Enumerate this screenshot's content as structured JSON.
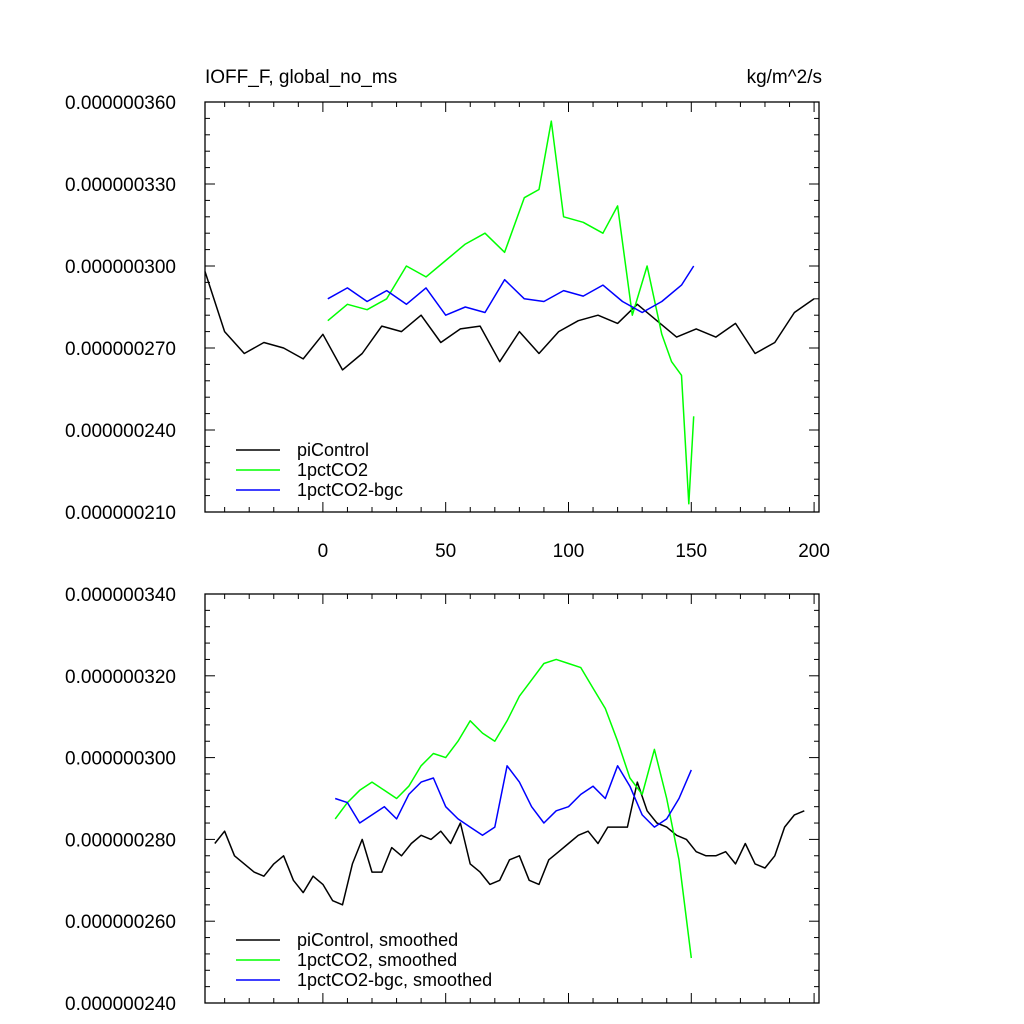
{
  "chart_data": [
    {
      "type": "line",
      "title_left": "IOFF_F, global_no_ms",
      "title_right": "kg/m^2/s",
      "xlabel": "",
      "ylabel": "",
      "xlim": [
        -48,
        202
      ],
      "ylim": [
        2.1e-07,
        3.6e-07
      ],
      "xticks": [
        0,
        50,
        100,
        150,
        200
      ],
      "xtick_labels": [
        "0",
        "50",
        "100",
        "150",
        "200"
      ],
      "yticks": [
        2.1e-07,
        2.4e-07,
        2.7e-07,
        3e-07,
        3.3e-07,
        3.6e-07
      ],
      "ytick_labels": [
        "0.000000210",
        "0.000000240",
        "0.000000270",
        "0.000000300",
        "0.000000330",
        "0.000000360"
      ],
      "legend_position": "bottom-left",
      "series": [
        {
          "name": "piControl",
          "color": "#000000",
          "x": [
            -48,
            -40,
            -32,
            -24,
            -16,
            -8,
            0,
            8,
            16,
            24,
            32,
            40,
            48,
            56,
            64,
            72,
            80,
            88,
            96,
            104,
            112,
            120,
            128,
            136,
            144,
            152,
            160,
            168,
            176,
            184,
            192,
            200
          ],
          "values": [
            2.98e-07,
            2.76e-07,
            2.68e-07,
            2.72e-07,
            2.7e-07,
            2.66e-07,
            2.75e-07,
            2.62e-07,
            2.68e-07,
            2.78e-07,
            2.76e-07,
            2.82e-07,
            2.72e-07,
            2.77e-07,
            2.78e-07,
            2.65e-07,
            2.76e-07,
            2.68e-07,
            2.76e-07,
            2.8e-07,
            2.82e-07,
            2.79e-07,
            2.86e-07,
            2.8e-07,
            2.74e-07,
            2.77e-07,
            2.74e-07,
            2.79e-07,
            2.68e-07,
            2.72e-07,
            2.83e-07,
            2.88e-07
          ]
        },
        {
          "name": "1pctCO2",
          "color": "#00ff00",
          "x": [
            2,
            10,
            18,
            26,
            34,
            42,
            50,
            58,
            66,
            74,
            82,
            88,
            93,
            98,
            106,
            114,
            120,
            126,
            132,
            138,
            142,
            146,
            149,
            151
          ],
          "values": [
            2.8e-07,
            2.86e-07,
            2.84e-07,
            2.88e-07,
            3e-07,
            2.96e-07,
            3.02e-07,
            3.08e-07,
            3.12e-07,
            3.05e-07,
            3.25e-07,
            3.28e-07,
            3.53e-07,
            3.18e-07,
            3.16e-07,
            3.12e-07,
            3.22e-07,
            2.82e-07,
            3e-07,
            2.75e-07,
            2.65e-07,
            2.6e-07,
            2.13e-07,
            2.45e-07
          ]
        },
        {
          "name": "1pctCO2-bgc",
          "color": "#0000ff",
          "x": [
            2,
            10,
            18,
            26,
            34,
            42,
            50,
            58,
            66,
            74,
            82,
            90,
            98,
            106,
            114,
            122,
            130,
            138,
            146,
            151
          ],
          "values": [
            2.88e-07,
            2.92e-07,
            2.87e-07,
            2.91e-07,
            2.86e-07,
            2.92e-07,
            2.82e-07,
            2.85e-07,
            2.83e-07,
            2.95e-07,
            2.88e-07,
            2.87e-07,
            2.91e-07,
            2.89e-07,
            2.93e-07,
            2.87e-07,
            2.83e-07,
            2.87e-07,
            2.93e-07,
            3e-07
          ]
        }
      ]
    },
    {
      "type": "line",
      "title": "",
      "xlabel": "",
      "ylabel": "",
      "xlim": [
        -48,
        202
      ],
      "ylim": [
        2.4e-07,
        3.4e-07
      ],
      "xticks": [
        0,
        50,
        100,
        150,
        200
      ],
      "yticks": [
        2.4e-07,
        2.6e-07,
        2.8e-07,
        3e-07,
        3.2e-07,
        3.4e-07
      ],
      "ytick_labels": [
        "0.000000240",
        "0.000000260",
        "0.000000280",
        "0.000000300",
        "0.000000320",
        "0.000000340"
      ],
      "legend_position": "bottom-left",
      "series": [
        {
          "name": "piControl, smoothed",
          "color": "#000000",
          "x": [
            -44,
            -40,
            -36,
            -32,
            -28,
            -24,
            -20,
            -16,
            -12,
            -8,
            -4,
            0,
            4,
            8,
            12,
            16,
            20,
            24,
            28,
            32,
            36,
            40,
            44,
            48,
            52,
            56,
            60,
            64,
            68,
            72,
            76,
            80,
            84,
            88,
            92,
            96,
            100,
            104,
            108,
            112,
            116,
            120,
            124,
            128,
            132,
            136,
            140,
            144,
            148,
            152,
            156,
            160,
            164,
            168,
            172,
            176,
            180,
            184,
            188,
            192,
            196
          ],
          "values": [
            2.79e-07,
            2.82e-07,
            2.76e-07,
            2.74e-07,
            2.72e-07,
            2.71e-07,
            2.74e-07,
            2.76e-07,
            2.7e-07,
            2.67e-07,
            2.71e-07,
            2.69e-07,
            2.65e-07,
            2.64e-07,
            2.74e-07,
            2.8e-07,
            2.72e-07,
            2.72e-07,
            2.78e-07,
            2.76e-07,
            2.79e-07,
            2.81e-07,
            2.8e-07,
            2.82e-07,
            2.79e-07,
            2.84e-07,
            2.74e-07,
            2.72e-07,
            2.69e-07,
            2.7e-07,
            2.75e-07,
            2.76e-07,
            2.7e-07,
            2.69e-07,
            2.75e-07,
            2.77e-07,
            2.79e-07,
            2.81e-07,
            2.82e-07,
            2.79e-07,
            2.83e-07,
            2.83e-07,
            2.83e-07,
            2.94e-07,
            2.87e-07,
            2.84e-07,
            2.83e-07,
            2.81e-07,
            2.8e-07,
            2.77e-07,
            2.76e-07,
            2.76e-07,
            2.77e-07,
            2.74e-07,
            2.79e-07,
            2.74e-07,
            2.73e-07,
            2.76e-07,
            2.83e-07,
            2.86e-07,
            2.87e-07
          ]
        },
        {
          "name": "1pctCO2, smoothed",
          "color": "#00ff00",
          "x": [
            5,
            10,
            15,
            20,
            25,
            30,
            35,
            40,
            45,
            50,
            55,
            60,
            65,
            70,
            75,
            80,
            85,
            90,
            95,
            100,
            105,
            110,
            115,
            120,
            125,
            130,
            135,
            140,
            145,
            150
          ],
          "values": [
            2.85e-07,
            2.89e-07,
            2.92e-07,
            2.94e-07,
            2.92e-07,
            2.9e-07,
            2.93e-07,
            2.98e-07,
            3.01e-07,
            3e-07,
            3.04e-07,
            3.09e-07,
            3.06e-07,
            3.04e-07,
            3.09e-07,
            3.15e-07,
            3.19e-07,
            3.23e-07,
            3.24e-07,
            3.23e-07,
            3.22e-07,
            3.17e-07,
            3.12e-07,
            3.04e-07,
            2.95e-07,
            2.91e-07,
            3.02e-07,
            2.9e-07,
            2.75e-07,
            2.51e-07
          ]
        },
        {
          "name": "1pctCO2-bgc, smoothed",
          "color": "#0000ff",
          "x": [
            5,
            10,
            15,
            20,
            25,
            30,
            35,
            40,
            45,
            50,
            55,
            60,
            65,
            70,
            75,
            80,
            85,
            90,
            95,
            100,
            105,
            110,
            115,
            120,
            125,
            130,
            135,
            140,
            145,
            150
          ],
          "values": [
            2.9e-07,
            2.89e-07,
            2.84e-07,
            2.86e-07,
            2.88e-07,
            2.85e-07,
            2.91e-07,
            2.94e-07,
            2.95e-07,
            2.88e-07,
            2.85e-07,
            2.83e-07,
            2.81e-07,
            2.83e-07,
            2.98e-07,
            2.94e-07,
            2.88e-07,
            2.84e-07,
            2.87e-07,
            2.88e-07,
            2.91e-07,
            2.93e-07,
            2.9e-07,
            2.98e-07,
            2.93e-07,
            2.86e-07,
            2.83e-07,
            2.85e-07,
            2.9e-07,
            2.97e-07
          ]
        }
      ]
    }
  ]
}
